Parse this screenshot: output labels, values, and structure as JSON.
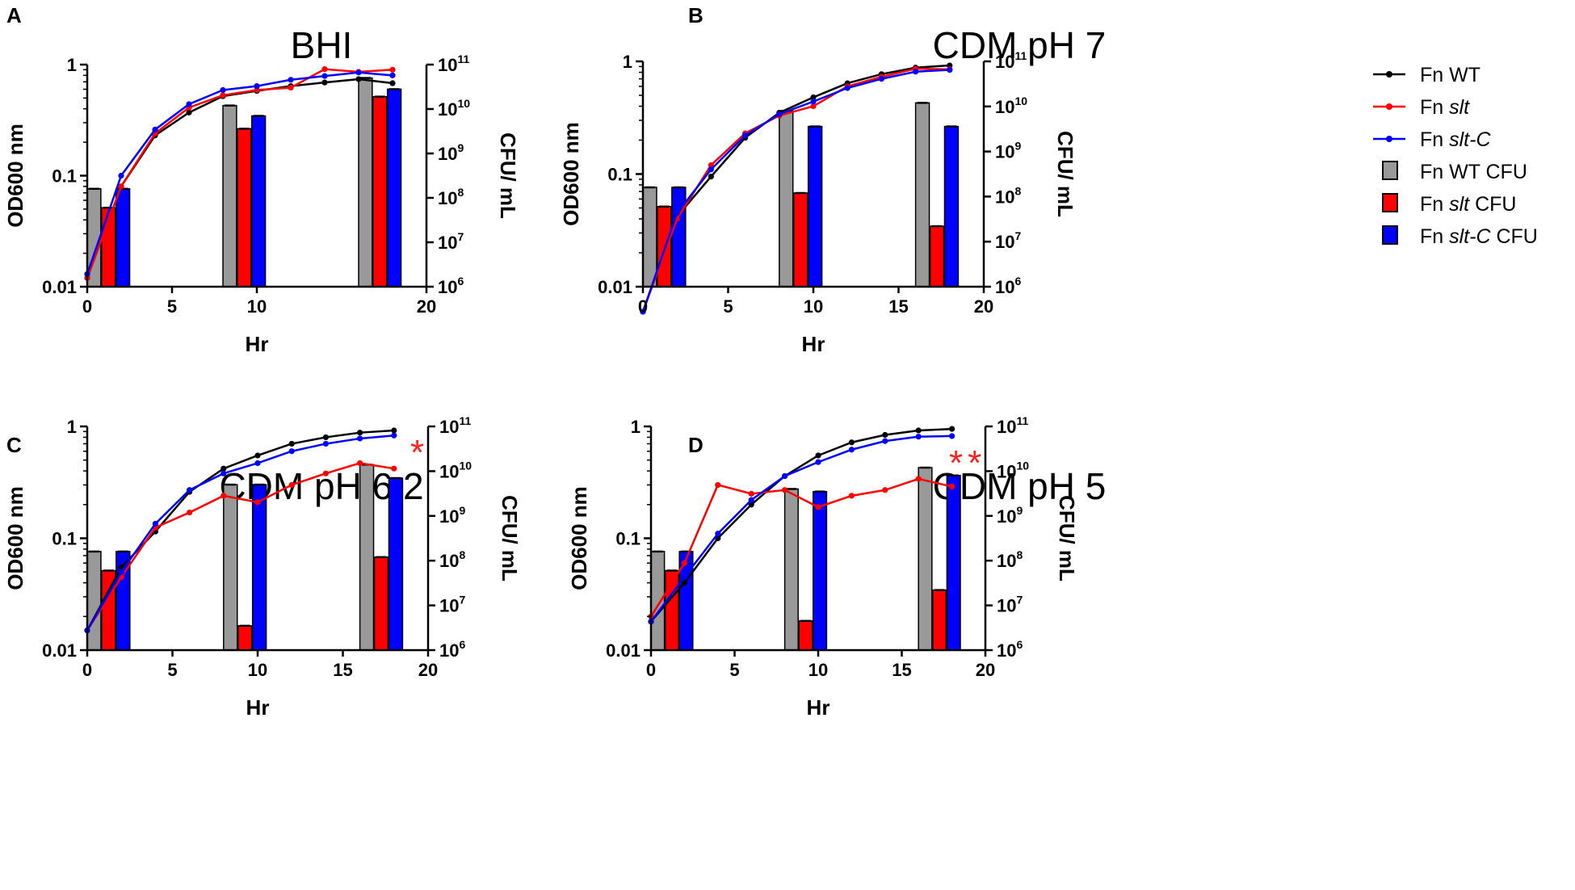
{
  "legend": {
    "entries": [
      {
        "pre": "Fn ",
        "it": "WT",
        "post": "",
        "italic": false,
        "kind": "line",
        "color": "#000000"
      },
      {
        "pre": "Fn ",
        "it": "slt",
        "post": "",
        "italic": true,
        "kind": "line",
        "color": "#ff0000"
      },
      {
        "pre": "Fn ",
        "it": "slt-C",
        "post": "",
        "italic": true,
        "kind": "line",
        "color": "#0000ff"
      },
      {
        "pre": "Fn ",
        "it": "WT",
        "post": " CFU",
        "italic": false,
        "kind": "bar",
        "color": "#999999"
      },
      {
        "pre": "Fn ",
        "it": "slt",
        "post": " CFU",
        "italic": true,
        "kind": "bar",
        "color": "#ff0000"
      },
      {
        "pre": "Fn ",
        "it": "slt-C",
        "post": " CFU",
        "italic": true,
        "kind": "bar",
        "color": "#0000ff"
      }
    ]
  },
  "colors": {
    "wt": "#000000",
    "slt": "#ff0000",
    "sltc": "#0000ff",
    "wt_bar": "#999999",
    "sig": "#ff2020"
  },
  "chart_data": [
    {
      "panel": "A",
      "type": "line+bar",
      "title": "BHI",
      "xlabel": "Hr",
      "ylabel": "OD600 nm",
      "y2label": "CFU/ mL",
      "xlim": [
        0,
        20
      ],
      "xticks": [
        "0",
        "5",
        "10",
        "20"
      ],
      "xtick_values": [
        0,
        5,
        10,
        20
      ],
      "ylim": [
        0.01,
        1
      ],
      "yticks": [
        "0.01",
        "0.1",
        "1"
      ],
      "y2lim": [
        1000000,
        100000000000
      ],
      "y2ticks_exponents": [
        "6",
        "7",
        "8",
        "9",
        "10",
        "11"
      ],
      "x": [
        0,
        2,
        4,
        6,
        8,
        10,
        12,
        14,
        16,
        18
      ],
      "series": [
        {
          "name": "Fn WT",
          "values": [
            0.012,
            0.08,
            0.23,
            0.37,
            0.52,
            0.58,
            0.64,
            0.69,
            0.74,
            0.68
          ]
        },
        {
          "name": "Fn slt",
          "values": [
            0.012,
            0.08,
            0.24,
            0.41,
            0.53,
            0.59,
            0.62,
            0.91,
            0.86,
            0.9
          ]
        },
        {
          "name": "Fn slt-C",
          "values": [
            0.013,
            0.1,
            0.26,
            0.44,
            0.59,
            0.64,
            0.73,
            0.79,
            0.85,
            0.8
          ]
        }
      ],
      "bar_groups": [
        0,
        8,
        16
      ],
      "bars": [
        {
          "name": "Fn WT CFU",
          "values": [
            160000000,
            12000000000,
            50000000000
          ]
        },
        {
          "name": "Fn slt CFU",
          "values": [
            60000000,
            3600000000,
            19000000000
          ]
        },
        {
          "name": "Fn slt-C CFU",
          "values": [
            160000000,
            7000000000,
            28000000000
          ]
        }
      ],
      "annotation": ""
    },
    {
      "panel": "B",
      "type": "line+bar",
      "title": "CDM pH 7",
      "xlabel": "Hr",
      "ylabel": "OD600 nm",
      "y2label": "CFU/ mL",
      "xlim": [
        0,
        20
      ],
      "xticks": [
        "0",
        "5",
        "10",
        "15",
        "20"
      ],
      "xtick_values": [
        0,
        5,
        10,
        15,
        20
      ],
      "ylim": [
        0.01,
        1
      ],
      "yticks": [
        "0.01",
        "0.1",
        "1"
      ],
      "y2lim": [
        1000000,
        100000000000
      ],
      "y2ticks_exponents": [
        "6",
        "7",
        "8",
        "9",
        "10",
        "11"
      ],
      "x": [
        0,
        2,
        4,
        6,
        8,
        10,
        12,
        14,
        16,
        18
      ],
      "series": [
        {
          "name": "Fn WT",
          "values": [
            0.006,
            0.042,
            0.095,
            0.21,
            0.35,
            0.48,
            0.64,
            0.77,
            0.88,
            0.92
          ]
        },
        {
          "name": "Fn slt",
          "values": [
            0.006,
            0.04,
            0.12,
            0.23,
            0.33,
            0.4,
            0.6,
            0.73,
            0.86,
            0.85
          ]
        },
        {
          "name": "Fn slt-C",
          "values": [
            0.006,
            0.045,
            0.11,
            0.22,
            0.34,
            0.44,
            0.58,
            0.7,
            0.81,
            0.84
          ]
        }
      ],
      "bar_groups": [
        0,
        8,
        16
      ],
      "bars": [
        {
          "name": "Fn WT CFU",
          "values": [
            160000000,
            8000000000,
            12000000000
          ]
        },
        {
          "name": "Fn slt CFU",
          "values": [
            60000000,
            120000000,
            22000000
          ]
        },
        {
          "name": "Fn slt-C CFU",
          "values": [
            160000000,
            3600000000,
            3600000000
          ]
        }
      ],
      "annotation": ""
    },
    {
      "panel": "C",
      "type": "line+bar",
      "title": "CDM pH 6.2",
      "xlabel": "Hr",
      "ylabel": "OD600 nm",
      "y2label": "CFU/ mL",
      "xlim": [
        0,
        20
      ],
      "xticks": [
        "0",
        "5",
        "10",
        "15",
        "20"
      ],
      "xtick_values": [
        0,
        5,
        10,
        15,
        20
      ],
      "ylim": [
        0.01,
        1
      ],
      "yticks": [
        "0.01",
        "0.1",
        "1"
      ],
      "y2lim": [
        1000000,
        100000000000
      ],
      "y2ticks_exponents": [
        "6",
        "7",
        "8",
        "9",
        "10",
        "11"
      ],
      "x": [
        0,
        2,
        4,
        6,
        8,
        10,
        12,
        14,
        16,
        18
      ],
      "series": [
        {
          "name": "Fn WT",
          "values": [
            0.015,
            0.055,
            0.115,
            0.26,
            0.42,
            0.55,
            0.7,
            0.8,
            0.88,
            0.92
          ]
        },
        {
          "name": "Fn slt",
          "values": [
            0.015,
            0.045,
            0.125,
            0.17,
            0.24,
            0.21,
            0.3,
            0.38,
            0.47,
            0.42
          ]
        },
        {
          "name": "Fn slt-C",
          "values": [
            0.015,
            0.05,
            0.135,
            0.27,
            0.38,
            0.47,
            0.6,
            0.7,
            0.78,
            0.83
          ]
        }
      ],
      "bar_groups": [
        0,
        8,
        16
      ],
      "bars": [
        {
          "name": "Fn WT CFU",
          "values": [
            160000000,
            5000000000,
            14000000000
          ]
        },
        {
          "name": "Fn slt CFU",
          "values": [
            60000000,
            3500000,
            120000000
          ]
        },
        {
          "name": "Fn slt-C CFU",
          "values": [
            160000000,
            5000000000,
            7000000000
          ]
        }
      ],
      "annotation": "*"
    },
    {
      "panel": "D",
      "type": "line+bar",
      "title": "CDM pH 5",
      "xlabel": "Hr",
      "ylabel": "OD600 nm",
      "y2label": "CFU/ mL",
      "xlim": [
        0,
        20
      ],
      "xticks": [
        "0",
        "5",
        "10",
        "15",
        "20"
      ],
      "xtick_values": [
        0,
        5,
        10,
        15,
        20
      ],
      "ylim": [
        0.01,
        1
      ],
      "yticks": [
        "0.01",
        "0.1",
        "1"
      ],
      "y2lim": [
        1000000,
        100000000000
      ],
      "y2ticks_exponents": [
        "6",
        "7",
        "8",
        "9",
        "10",
        "11"
      ],
      "x": [
        0,
        2,
        4,
        6,
        8,
        10,
        12,
        14,
        16,
        18
      ],
      "series": [
        {
          "name": "Fn WT",
          "values": [
            0.018,
            0.04,
            0.1,
            0.2,
            0.36,
            0.55,
            0.72,
            0.84,
            0.92,
            0.95
          ]
        },
        {
          "name": "Fn slt",
          "values": [
            0.02,
            0.06,
            0.3,
            0.25,
            0.27,
            0.19,
            0.24,
            0.27,
            0.34,
            0.29
          ]
        },
        {
          "name": "Fn slt-C",
          "values": [
            0.018,
            0.045,
            0.11,
            0.22,
            0.36,
            0.48,
            0.62,
            0.74,
            0.81,
            0.82
          ]
        }
      ],
      "bar_groups": [
        0,
        8,
        16
      ],
      "bars": [
        {
          "name": "Fn WT CFU",
          "values": [
            160000000,
            4000000000,
            12000000000
          ]
        },
        {
          "name": "Fn slt CFU",
          "values": [
            60000000,
            4500000,
            22000000
          ]
        },
        {
          "name": "Fn slt-C CFU",
          "values": [
            160000000,
            3500000000,
            8000000000
          ]
        }
      ],
      "annotation": "**"
    }
  ]
}
